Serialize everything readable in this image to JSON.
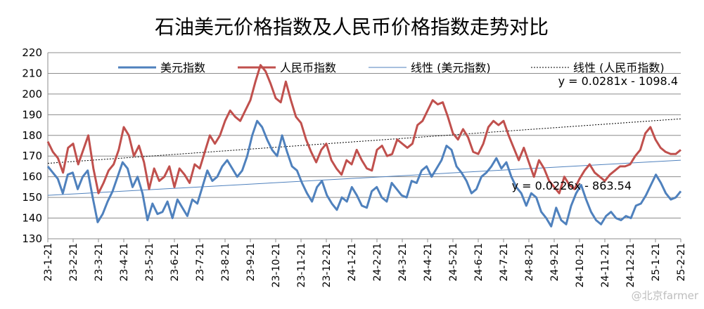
{
  "chart_data": {
    "type": "line",
    "title": "石油美元价格指数及人民币价格指数走势对比",
    "ylim": [
      130,
      220
    ],
    "yticks": [
      130,
      140,
      150,
      160,
      170,
      180,
      190,
      200,
      210,
      220
    ],
    "grid": true,
    "legend_position": "top",
    "x_tick_labels": [
      "23-1-21",
      "23-2-21",
      "23-3-21",
      "23-4-21",
      "23-5-21",
      "23-6-21",
      "23-7-21",
      "23-8-21",
      "23-9-21",
      "23-10-21",
      "23-11-21",
      "23-12-21",
      "24-1-21",
      "24-2-21",
      "24-3-21",
      "24-4-21",
      "24-5-21",
      "24-6-21",
      "24-7-21",
      "24-8-21",
      "24-9-21",
      "24-10-21",
      "24-11-21",
      "24-12-21",
      "25-1-21",
      "25-2-21"
    ],
    "series": [
      {
        "name": "美元指数",
        "color": "#4F81BD",
        "values": [
          165,
          162,
          159,
          152,
          161,
          162,
          154,
          160,
          163,
          150,
          138,
          142,
          148,
          153,
          160,
          167,
          164,
          155,
          160,
          152,
          139,
          147,
          142,
          143,
          148,
          140,
          149,
          145,
          141,
          149,
          147,
          155,
          163,
          158,
          160,
          165,
          168,
          164,
          160,
          163,
          170,
          180,
          187,
          184,
          178,
          173,
          170,
          180,
          172,
          165,
          163,
          157,
          152,
          148,
          155,
          158,
          151,
          147,
          144,
          150,
          148,
          155,
          151,
          146,
          145,
          153,
          155,
          150,
          148,
          157,
          154,
          151,
          150,
          158,
          157,
          163,
          165,
          160,
          164,
          168,
          175,
          173,
          165,
          162,
          158,
          152,
          154,
          160,
          162,
          165,
          169,
          164,
          167,
          160,
          155,
          152,
          146,
          152,
          150,
          143,
          140,
          136,
          145,
          139,
          137,
          146,
          152,
          156,
          149,
          143,
          139,
          137,
          141,
          143,
          140,
          139,
          141,
          140,
          146,
          147,
          151,
          156,
          161,
          157,
          152,
          149,
          150,
          153
        ]
      },
      {
        "name": "人民币指数",
        "color": "#C0504D",
        "values": [
          177,
          172,
          169,
          162,
          174,
          176,
          166,
          173,
          180,
          164,
          152,
          157,
          163,
          166,
          173,
          184,
          180,
          170,
          175,
          167,
          154,
          164,
          158,
          160,
          165,
          155,
          164,
          161,
          157,
          166,
          164,
          172,
          180,
          176,
          180,
          187,
          192,
          189,
          187,
          192,
          197,
          206,
          214,
          211,
          205,
          198,
          196,
          206,
          197,
          189,
          186,
          178,
          172,
          167,
          173,
          176,
          168,
          164,
          161,
          168,
          166,
          173,
          168,
          164,
          163,
          173,
          175,
          170,
          171,
          178,
          176,
          174,
          176,
          185,
          187,
          192,
          197,
          195,
          196,
          189,
          181,
          178,
          183,
          179,
          172,
          171,
          176,
          184,
          187,
          185,
          187,
          180,
          174,
          168,
          174,
          167,
          160,
          168,
          164,
          158,
          155,
          152,
          160,
          156,
          154,
          159,
          163,
          166,
          162,
          160,
          158,
          161,
          163,
          165,
          165,
          166,
          170,
          173,
          181,
          184,
          178,
          174,
          172,
          171,
          171,
          173
        ]
      },
      {
        "name": "线性 (美元指数)",
        "color": "#4F81BD",
        "style": "solid-thin",
        "trend_start": 151,
        "trend_end": 168,
        "equation": "y = 0.0226x - 863.54"
      },
      {
        "name": "线性 (人民币指数)",
        "color": "#000000",
        "style": "dotted",
        "trend_start": 166.5,
        "trend_end": 188,
        "equation": "y = 0.0281x - 1098.4"
      }
    ]
  },
  "watermark": "@北京farmer"
}
